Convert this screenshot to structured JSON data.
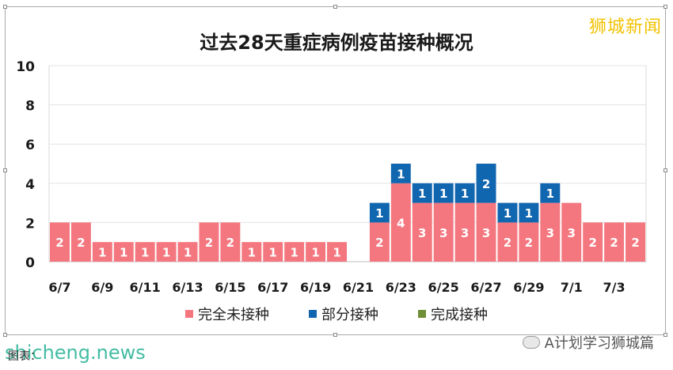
{
  "watermark": "狮城新闻",
  "source": {
    "label": "图表：",
    "site": "shicheng.news"
  },
  "wechat": {
    "brand": "A计划学习狮城篇"
  },
  "colors": {
    "unvaccinated": "#f4777f",
    "partial": "#1166b0",
    "full": "#6f8f37",
    "stacked_label": "#ffffff"
  },
  "chart_data": {
    "type": "bar",
    "stacked": true,
    "title": "过去28天重症病例疫苗接种概况",
    "ylim": [
      0,
      10
    ],
    "yticks": [
      "0",
      "2",
      "4",
      "6",
      "8",
      "10"
    ],
    "categories": [
      "6/7",
      "6/8",
      "6/9",
      "6/10",
      "6/11",
      "6/12",
      "6/13",
      "6/14",
      "6/15",
      "6/16",
      "6/17",
      "6/18",
      "6/19",
      "6/20",
      "6/21",
      "6/22",
      "6/23",
      "6/24",
      "6/25",
      "6/26",
      "6/27",
      "6/28",
      "6/29",
      "6/30",
      "7/1",
      "7/2",
      "7/3",
      "7/4"
    ],
    "tick_labels": [
      "6/7",
      "6/9",
      "6/11",
      "6/13",
      "6/15",
      "6/17",
      "6/19",
      "6/21",
      "6/23",
      "6/25",
      "6/27",
      "6/29",
      "7/1",
      "7/3"
    ],
    "series": [
      {
        "name": "完全未接种",
        "values": [
          2,
          2,
          1,
          1,
          1,
          1,
          1,
          2,
          2,
          1,
          1,
          1,
          1,
          1,
          0,
          2,
          4,
          3,
          3,
          3,
          3,
          2,
          2,
          3,
          3,
          2,
          2,
          2
        ]
      },
      {
        "name": "部分接种",
        "values": [
          0,
          0,
          0,
          0,
          0,
          0,
          0,
          0,
          0,
          0,
          0,
          0,
          0,
          0,
          0,
          1,
          1,
          1,
          1,
          1,
          2,
          1,
          1,
          1,
          0,
          0,
          0,
          0
        ]
      },
      {
        "name": "完成接种",
        "values": [
          0,
          0,
          0,
          0,
          0,
          0,
          0,
          0,
          0,
          0,
          0,
          0,
          0,
          0,
          0,
          0,
          0,
          0,
          0,
          0,
          0,
          0,
          0,
          0,
          0,
          0,
          0,
          0
        ]
      }
    ],
    "grid": true,
    "legend": "bottom"
  }
}
